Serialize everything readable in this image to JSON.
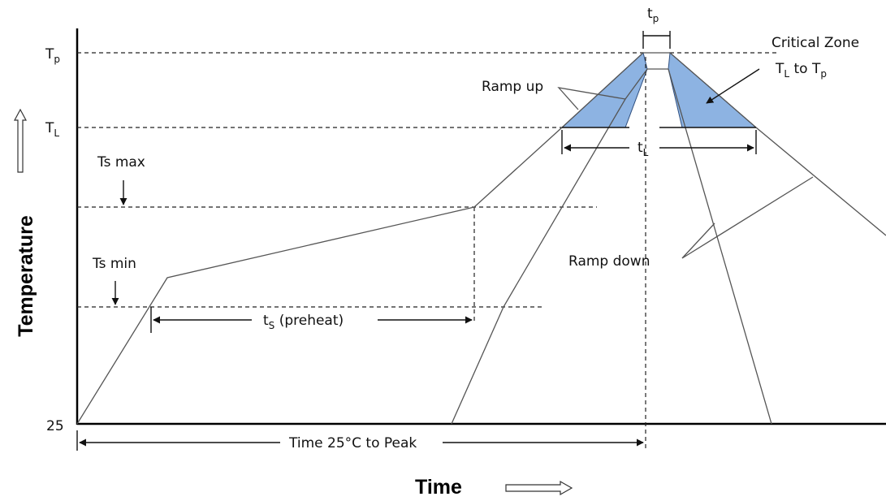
{
  "labels": {
    "tp_top": "t",
    "tp_top_sub": "p",
    "Tp_axis": "T",
    "Tp_axis_sub": "p",
    "TL_axis": "T",
    "TL_axis_sub": "L",
    "ts_max": "Ts max",
    "ts_min": "Ts min",
    "t25": "25",
    "critical_zone_line1": "Critical Zone",
    "critical_zone_T": "T",
    "critical_zone_T_sub": "L",
    "critical_zone_to": " to T",
    "critical_zone_to_sub": "p",
    "ramp_up": "Ramp up",
    "ramp_down": "Ramp down",
    "tL": "t",
    "tL_sub": "L",
    "ts_preheat_t": "t",
    "ts_preheat_sub": "S",
    "ts_preheat_rest": " (preheat)",
    "time_to_peak": "Time 25°C to Peak",
    "y_axis_title": "Temperature",
    "x_axis_title": "Time"
  },
  "colors": {
    "critical_zone_fill": "#8DB3E2",
    "critical_zone_stroke": "#2F4F7F"
  }
}
